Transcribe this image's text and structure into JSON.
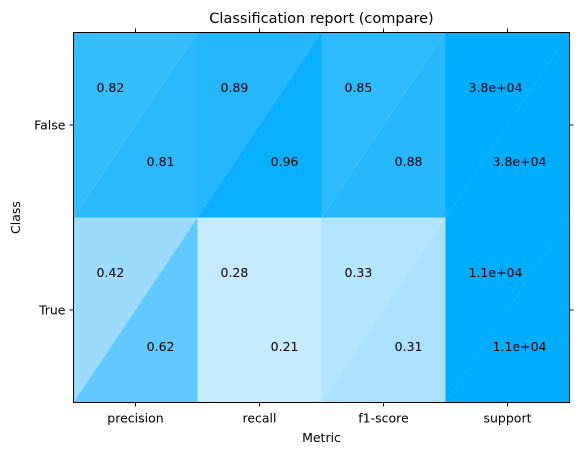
{
  "chart_data": {
    "type": "heatmap",
    "title": "Classification report (compare)",
    "xlabel": "Metric",
    "ylabel": "Class",
    "x_categories": [
      "precision",
      "recall",
      "f1-score",
      "support"
    ],
    "y_categories": [
      "False",
      "True"
    ],
    "cells": [
      [
        {
          "first": "0.82",
          "second": "0.81",
          "first_color": "#35bdfd",
          "second_color": "#2bb9fe"
        },
        {
          "first": "0.89",
          "second": "0.96",
          "first_color": "#24b6fe",
          "second_color": "#0aaffe"
        },
        {
          "first": "0.85",
          "second": "0.88",
          "first_color": "#2ebbfd",
          "second_color": "#26b7fe"
        },
        {
          "first": "3.8e+04",
          "second": "3.8e+04",
          "first_color": "#00adfe",
          "second_color": "#00adfe"
        }
      ],
      [
        {
          "first": "0.42",
          "second": "0.62",
          "first_color": "#9bdcfd",
          "second_color": "#62c9fe"
        },
        {
          "first": "0.28",
          "second": "0.21",
          "first_color": "#c5eafe",
          "second_color": "#c5eafe"
        },
        {
          "first": "0.33",
          "second": "0.31",
          "first_color": "#b4e5fe",
          "second_color": "#a9e1fe"
        },
        {
          "first": "1.1e+04",
          "second": "1.1e+04",
          "first_color": "#00adfe",
          "second_color": "#00adfe"
        }
      ]
    ]
  }
}
